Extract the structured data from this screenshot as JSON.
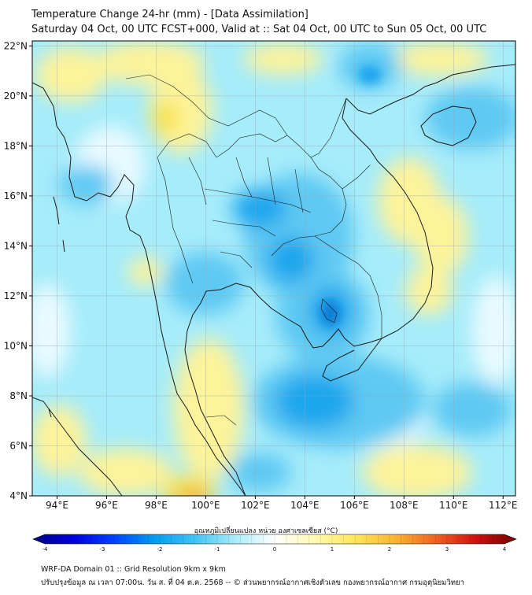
{
  "header": {
    "title": "Temperature Change 24-hr (mm) - [Data Assimilation]",
    "subtitle": "Saturday 04 Oct, 00 UTC FCST+000, Valid at :: Sat 04 Oct, 00 UTC to Sun 05 Oct, 00 UTC"
  },
  "map": {
    "lon_range": [
      93,
      112.5
    ],
    "lat_range": [
      4,
      22.2
    ],
    "lat_ticks": [
      {
        "value": 22,
        "label": "22°N"
      },
      {
        "value": 20,
        "label": "20°N"
      },
      {
        "value": 18,
        "label": "18°N"
      },
      {
        "value": 16,
        "label": "16°N"
      },
      {
        "value": 14,
        "label": "14°N"
      },
      {
        "value": 12,
        "label": "12°N"
      },
      {
        "value": 10,
        "label": "10°N"
      },
      {
        "value": 8,
        "label": "8°N"
      },
      {
        "value": 6,
        "label": "6°N"
      },
      {
        "value": 4,
        "label": "4°N"
      }
    ],
    "lon_ticks": [
      {
        "value": 94,
        "label": "94°E"
      },
      {
        "value": 96,
        "label": "96°E"
      },
      {
        "value": 98,
        "label": "98°E"
      },
      {
        "value": 100,
        "label": "100°E"
      },
      {
        "value": 102,
        "label": "102°E"
      },
      {
        "value": 104,
        "label": "104°E"
      },
      {
        "value": 106,
        "label": "106°E"
      },
      {
        "value": 108,
        "label": "108°E"
      },
      {
        "value": 110,
        "label": "110°E"
      },
      {
        "value": 112,
        "label": "112°E"
      }
    ],
    "colors": {
      "background": "#a6ecfa",
      "cool": "#5ec9f3",
      "cold": "#1aa6ee",
      "coldest": "#0b7fd6",
      "neutral": "#e8faff",
      "warm": "#fdf39a",
      "warmer": "#f9e24d",
      "hot": "#f4a13a",
      "grid": "#9aa7b0",
      "coast": "#1a1a1a"
    }
  },
  "colorbar": {
    "title": "อุณหภูมิเปลี่ยนแปลง หน่วย องศาเซลเซียส (°C)",
    "min": -4,
    "max": 4,
    "ticks": [
      {
        "value": -4,
        "label": "-4"
      },
      {
        "value": -3,
        "label": "-3"
      },
      {
        "value": -2,
        "label": "-2"
      },
      {
        "value": -1,
        "label": "-1"
      },
      {
        "value": 0,
        "label": "0"
      },
      {
        "value": 1,
        "label": "1"
      },
      {
        "value": 2,
        "label": "2"
      },
      {
        "value": 3,
        "label": "3"
      },
      {
        "value": 4,
        "label": "4"
      }
    ],
    "stops": [
      "#000080",
      "#0000e0",
      "#0040ff",
      "#009cf0",
      "#3ec4f2",
      "#a8ebf8",
      "#ffffff",
      "#fff9b0",
      "#fde65a",
      "#f9b530",
      "#f06020",
      "#d01010",
      "#700000"
    ]
  },
  "footer": {
    "line1": "WRF-DA Domain 01 :: Grid Resolution 9km x 9km",
    "line2": "ปรับปรุงข้อมูล ณ เวลา 07:00น. วัน ส. ที่ 04 ต.ค. 2568 -- © ส่วนพยากรณ์อากาศเชิงตัวเลข กองพยากรณ์อากาศ กรมอุตุนิยมวิทยา"
  }
}
